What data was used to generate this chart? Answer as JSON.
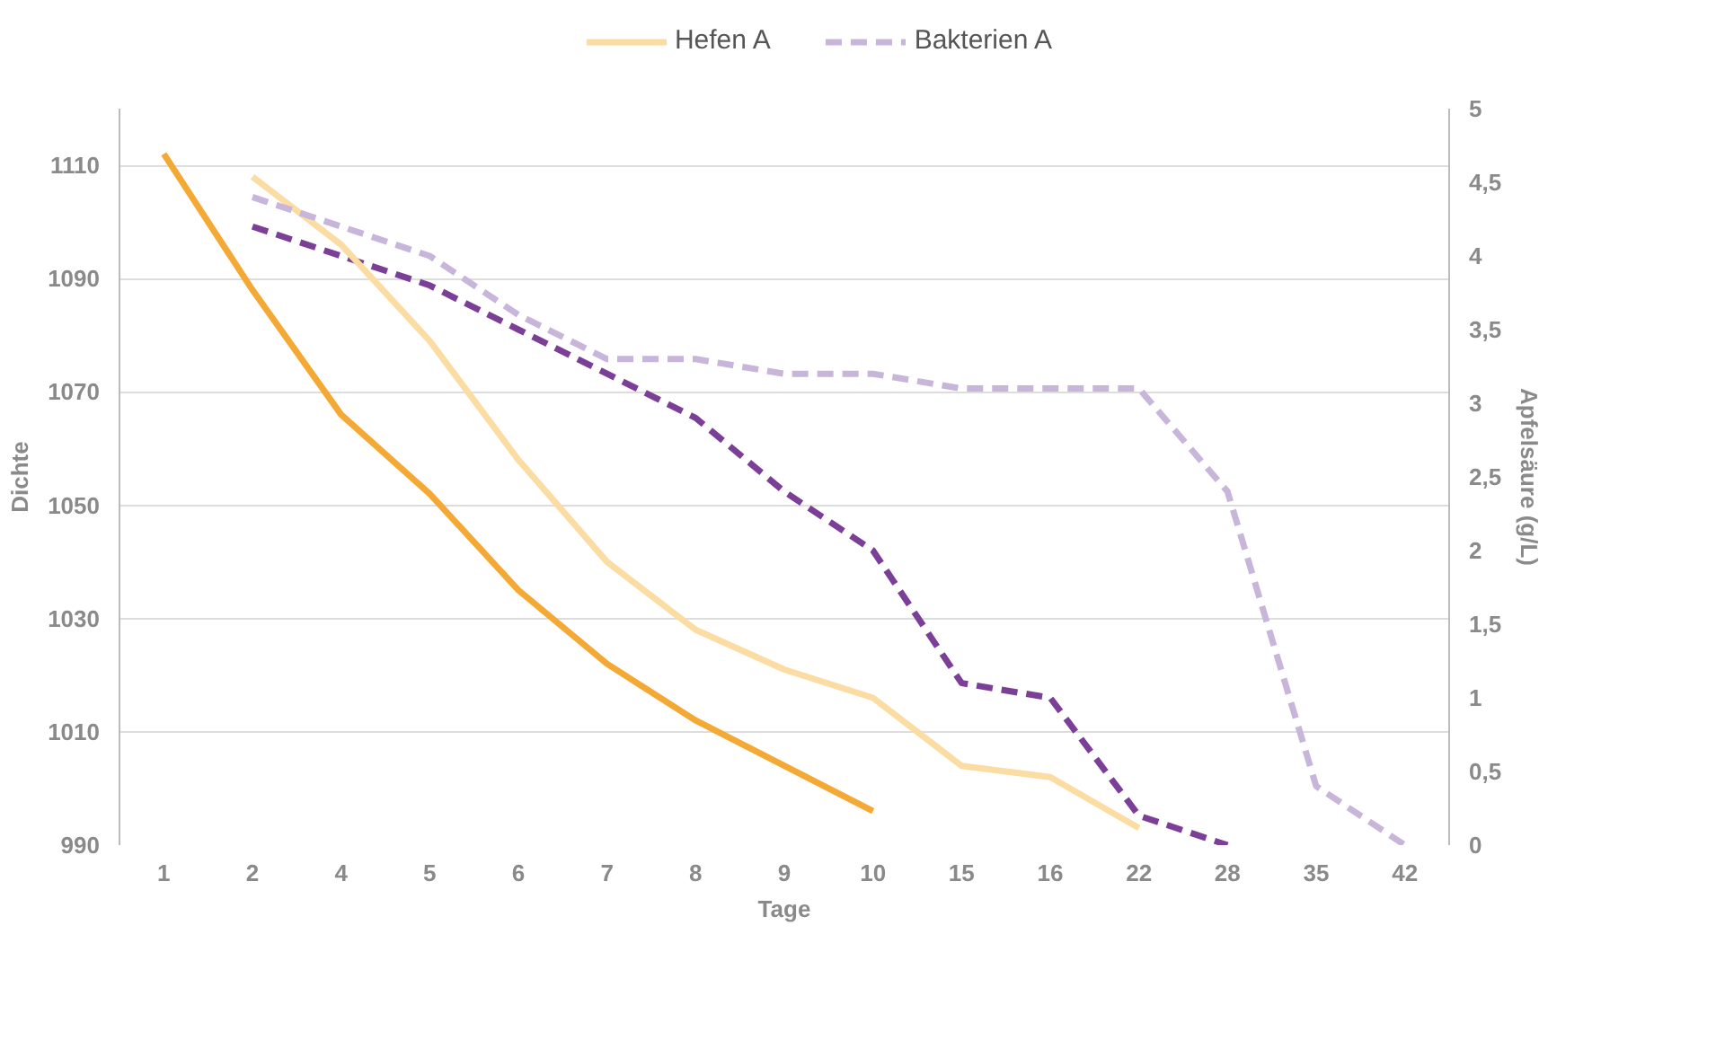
{
  "chart_data": {
    "type": "line",
    "xlabel": "Tage",
    "ylabel": "Dichte",
    "y2label": "Apfelsäure (g/L)",
    "categories": [
      "1",
      "2",
      "4",
      "5",
      "6",
      "7",
      "8",
      "9",
      "10",
      "15",
      "16",
      "22",
      "28",
      "35",
      "42"
    ],
    "series": [
      {
        "color": "#f5a935",
        "line_style": "solid",
        "values": [
          1112,
          1088,
          1066,
          1052,
          1035,
          1022,
          1012,
          1004,
          996,
          null,
          null,
          null,
          null,
          null,
          null
        ]
      },
      {
        "color": "#7b3f98",
        "line_style": "dashed",
        "axis": "y2",
        "values": [
          null,
          4.2,
          4.0,
          3.8,
          3.5,
          3.2,
          2.9,
          2.4,
          2.0,
          1.1,
          1.0,
          0.2,
          0.0,
          null,
          null
        ]
      },
      {
        "name": "Hefen A",
        "color": "#fbdca3",
        "line_style": "solid",
        "values": [
          null,
          1108,
          1096,
          1079,
          1058,
          1040,
          1028,
          1021,
          1016,
          1004,
          1002,
          993,
          null,
          null,
          null
        ]
      },
      {
        "name": "Bakterien A",
        "color": "#c7b5da",
        "line_style": "dashed",
        "axis": "y2",
        "values": [
          null,
          4.4,
          4.2,
          4.0,
          3.6,
          3.3,
          3.3,
          3.2,
          3.2,
          3.1,
          3.1,
          3.1,
          2.4,
          0.4,
          0.0
        ]
      }
    ],
    "ylim": [
      990,
      1120
    ],
    "yticks": [
      990,
      1010,
      1030,
      1050,
      1070,
      1090,
      1110
    ],
    "y2lim": [
      0,
      5
    ],
    "y2ticks": [
      0,
      {
        "value": 0.5,
        "label": "0,5"
      },
      1,
      {
        "value": 1.5,
        "label": "1,5"
      },
      2,
      {
        "value": 2.5,
        "label": "2,5"
      },
      3,
      {
        "value": 3.5,
        "label": "3,5"
      },
      4,
      {
        "value": 4.5,
        "label": "4,5"
      },
      5
    ],
    "grid": "y",
    "legend": "top",
    "marker": "none"
  }
}
